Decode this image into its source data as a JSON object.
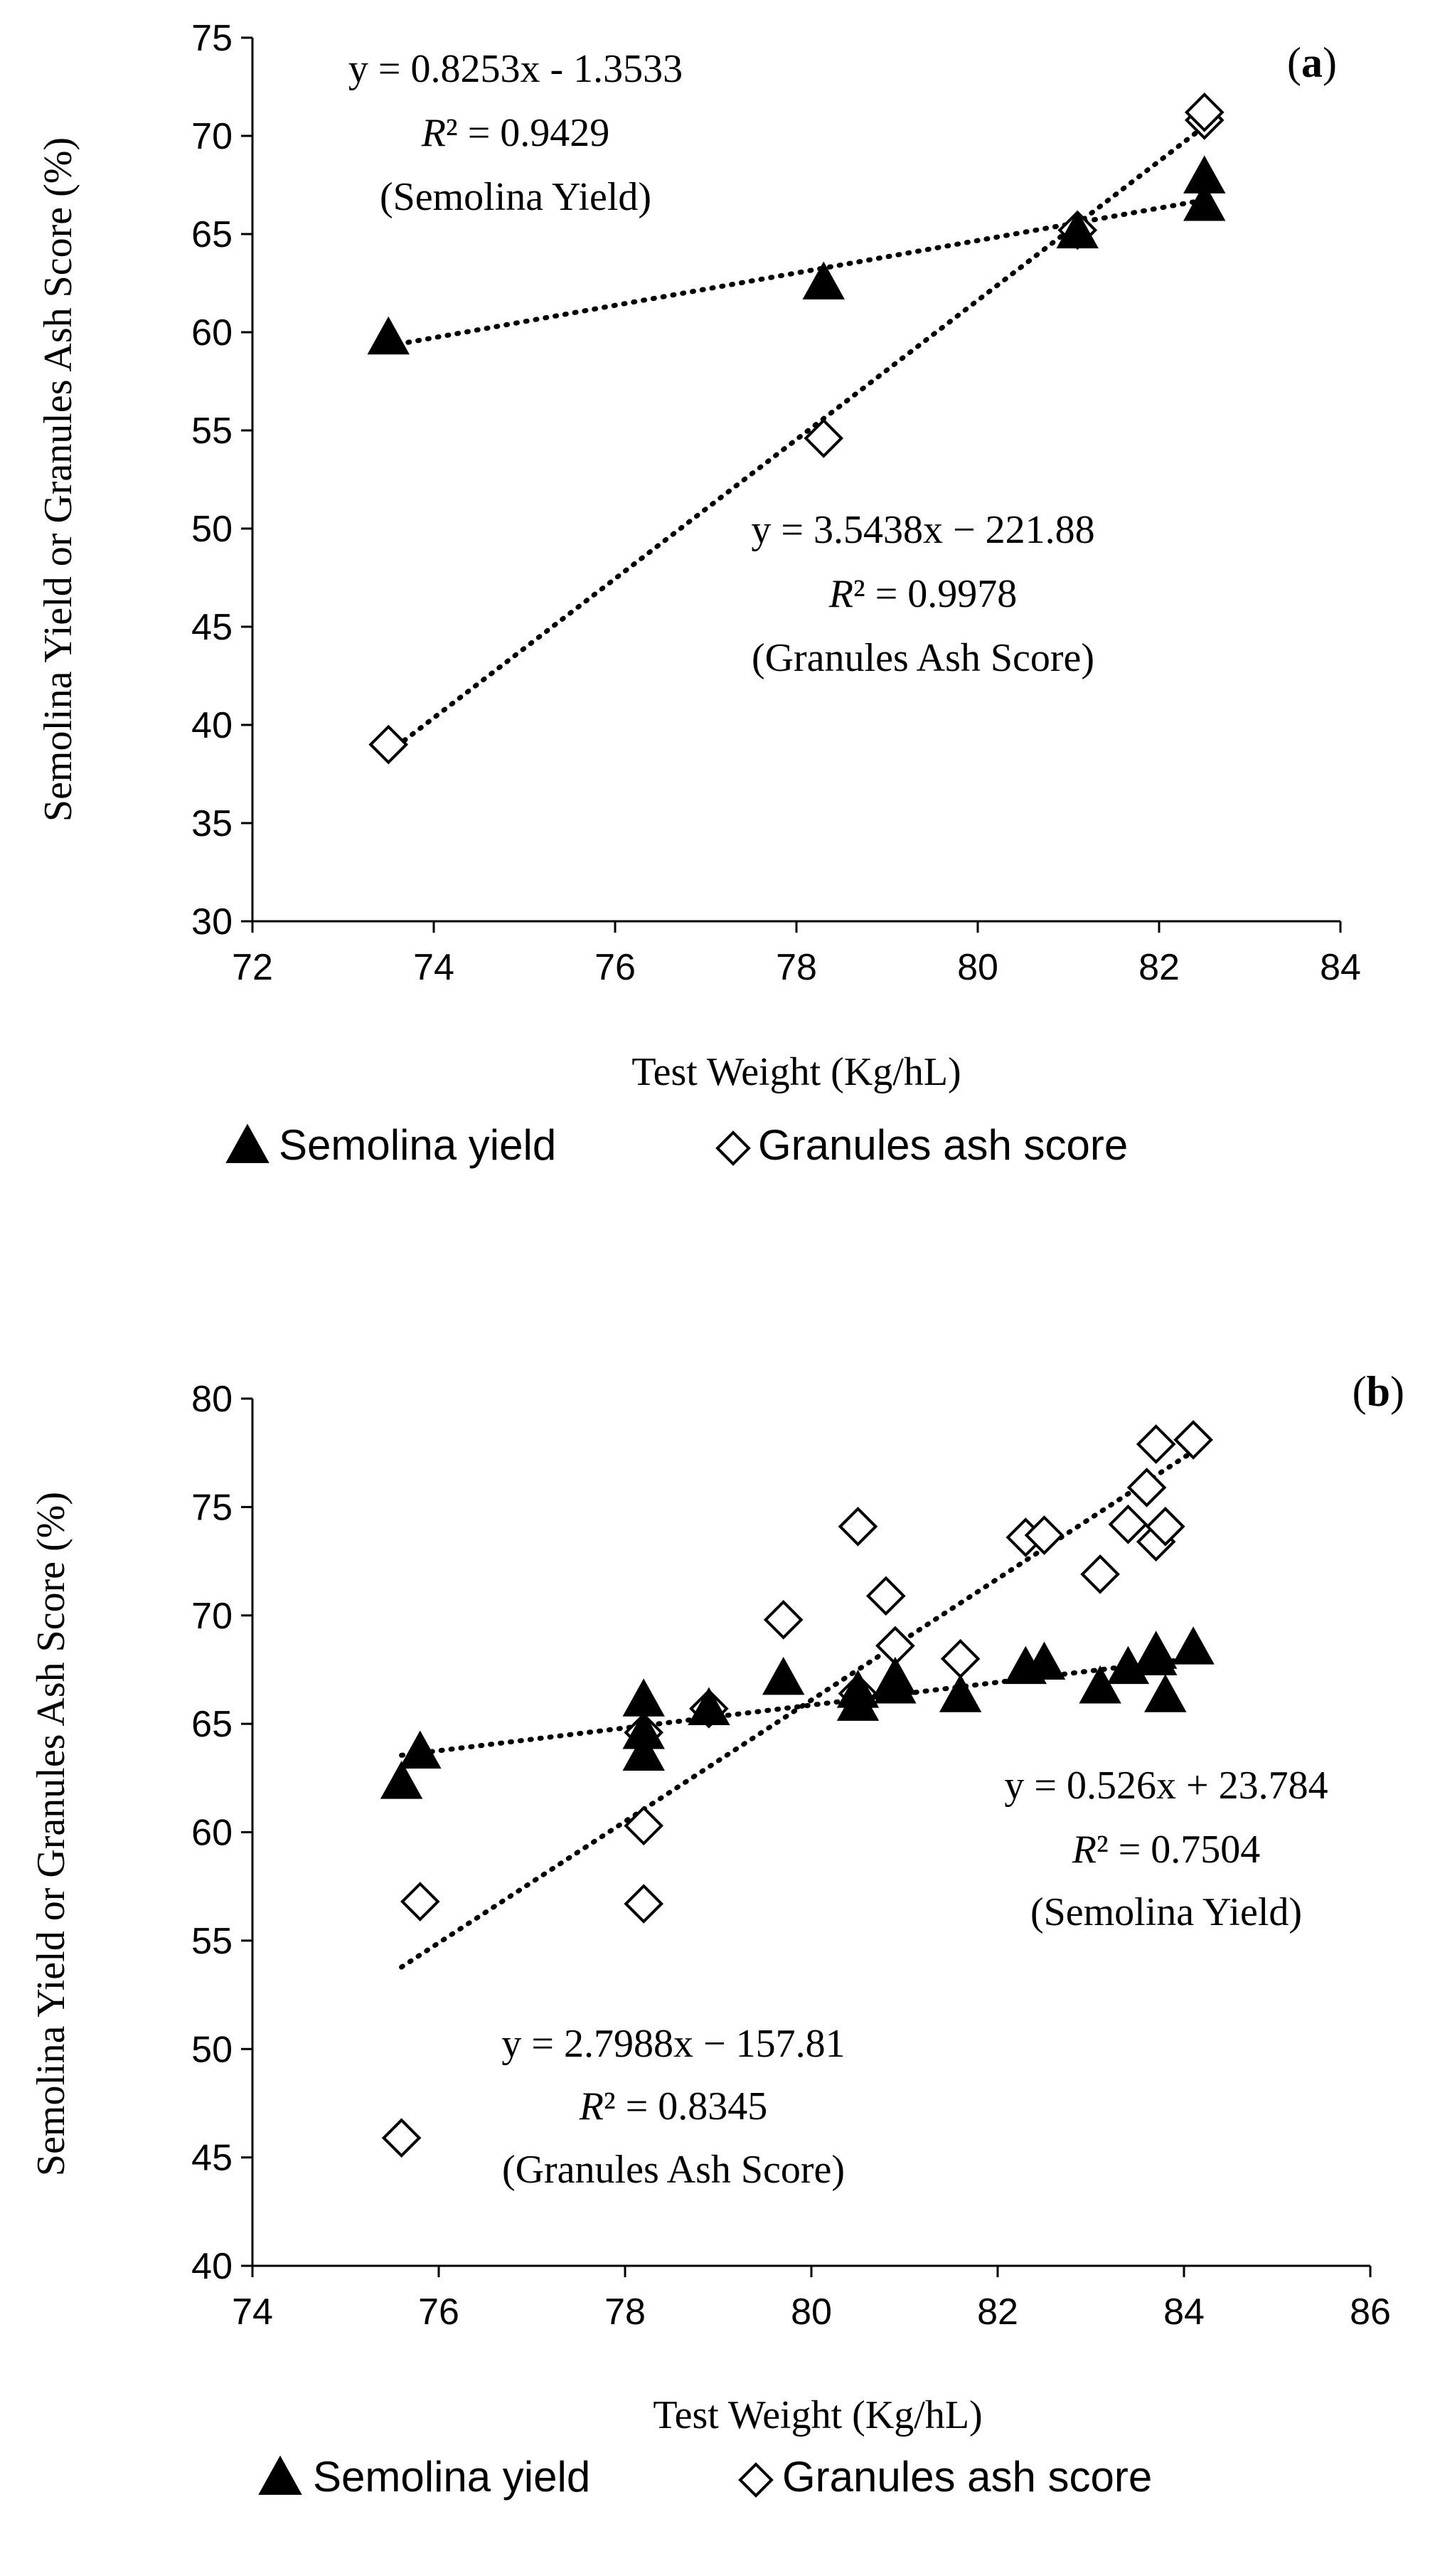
{
  "chart_data": [
    {
      "type": "scatter",
      "panel_label": "a",
      "xlabel": "Test Weight (Kg/hL)",
      "ylabel": "Semolina Yield or Granules Ash Score (%)",
      "xlim": [
        72,
        84
      ],
      "ylim": [
        30,
        75
      ],
      "x_ticks": [
        72,
        74,
        76,
        78,
        80,
        82,
        84
      ],
      "y_ticks": [
        30,
        35,
        40,
        45,
        50,
        55,
        60,
        65,
        70,
        75
      ],
      "grid": false,
      "legend_position": "bottom",
      "series": [
        {
          "name": "Semolina yield",
          "marker": "filled-triangle",
          "points": [
            [
              73.5,
              59.6
            ],
            [
              78.3,
              62.4
            ],
            [
              81.1,
              65.0
            ],
            [
              82.5,
              66.4
            ],
            [
              82.5,
              67.8
            ]
          ],
          "trendline": {
            "slope": 0.8253,
            "intercept": -1.3533,
            "x_range": [
              73.5,
              82.5
            ]
          },
          "equation": "y = 0.8253x - 1.3533",
          "r2": "R² = 0.9429",
          "caption": "(Semolina Yield)"
        },
        {
          "name": "Granules ash score",
          "marker": "open-diamond",
          "points": [
            [
              73.5,
              39.0
            ],
            [
              78.3,
              54.6
            ],
            [
              81.1,
              65.2
            ],
            [
              82.5,
              70.8
            ],
            [
              82.5,
              71.2
            ]
          ],
          "trendline": {
            "slope": 3.5438,
            "intercept": -221.88,
            "x_range": [
              73.5,
              82.5
            ]
          },
          "equation": "y = 3.5438x − 221.88",
          "r2": "R² = 0.9978",
          "caption": "(Granules Ash Score)"
        }
      ]
    },
    {
      "type": "scatter",
      "panel_label": "b",
      "xlabel": "Test Weight (Kg/hL)",
      "ylabel": "Semolina Yield or Granules Ash Score (%)",
      "xlim": [
        74,
        86
      ],
      "ylim": [
        40,
        80
      ],
      "x_ticks": [
        74,
        76,
        78,
        80,
        82,
        84,
        86
      ],
      "y_ticks": [
        40,
        45,
        50,
        55,
        60,
        65,
        70,
        75,
        80
      ],
      "grid": false,
      "legend_position": "bottom",
      "series": [
        {
          "name": "Semolina yield",
          "marker": "filled-triangle",
          "points": [
            [
              75.6,
              62.2
            ],
            [
              75.8,
              63.6
            ],
            [
              78.2,
              63.5
            ],
            [
              78.2,
              64.5
            ],
            [
              78.2,
              66.0
            ],
            [
              78.9,
              65.6
            ],
            [
              79.7,
              67.0
            ],
            [
              80.5,
              65.8
            ],
            [
              80.5,
              66.4
            ],
            [
              80.9,
              66.6
            ],
            [
              80.9,
              67.0
            ],
            [
              81.6,
              66.2
            ],
            [
              82.3,
              67.5
            ],
            [
              82.5,
              67.7
            ],
            [
              83.1,
              66.6
            ],
            [
              83.4,
              67.5
            ],
            [
              83.7,
              67.9
            ],
            [
              83.7,
              68.2
            ],
            [
              83.8,
              66.2
            ],
            [
              84.1,
              68.4
            ]
          ],
          "trendline": {
            "slope": 0.526,
            "intercept": 23.784,
            "x_range": [
              75.6,
              84.1
            ]
          },
          "equation": "y = 0.526x + 23.784",
          "r2": "R² = 0.7504",
          "caption": "(Semolina Yield)"
        },
        {
          "name": "Granules ash score",
          "marker": "open-diamond",
          "points": [
            [
              75.6,
              45.9
            ],
            [
              75.8,
              56.8
            ],
            [
              78.2,
              56.7
            ],
            [
              78.2,
              60.3
            ],
            [
              78.2,
              64.6
            ],
            [
              78.9,
              65.7
            ],
            [
              79.7,
              69.8
            ],
            [
              80.5,
              74.1
            ],
            [
              80.5,
              66.4
            ],
            [
              80.8,
              70.9
            ],
            [
              80.9,
              68.6
            ],
            [
              81.6,
              68.0
            ],
            [
              82.3,
              73.6
            ],
            [
              82.5,
              73.7
            ],
            [
              83.1,
              71.9
            ],
            [
              83.4,
              74.2
            ],
            [
              83.6,
              75.9
            ],
            [
              83.7,
              77.9
            ],
            [
              83.7,
              73.4
            ],
            [
              83.8,
              74.1
            ],
            [
              84.1,
              78.1
            ]
          ],
          "trendline": {
            "slope": 2.7988,
            "intercept": -157.81,
            "x_range": [
              75.6,
              84.1
            ]
          },
          "equation": "y = 2.7988x − 157.81",
          "r2": "R² = 0.8345",
          "caption": "(Granules Ash Score)"
        }
      ]
    }
  ]
}
